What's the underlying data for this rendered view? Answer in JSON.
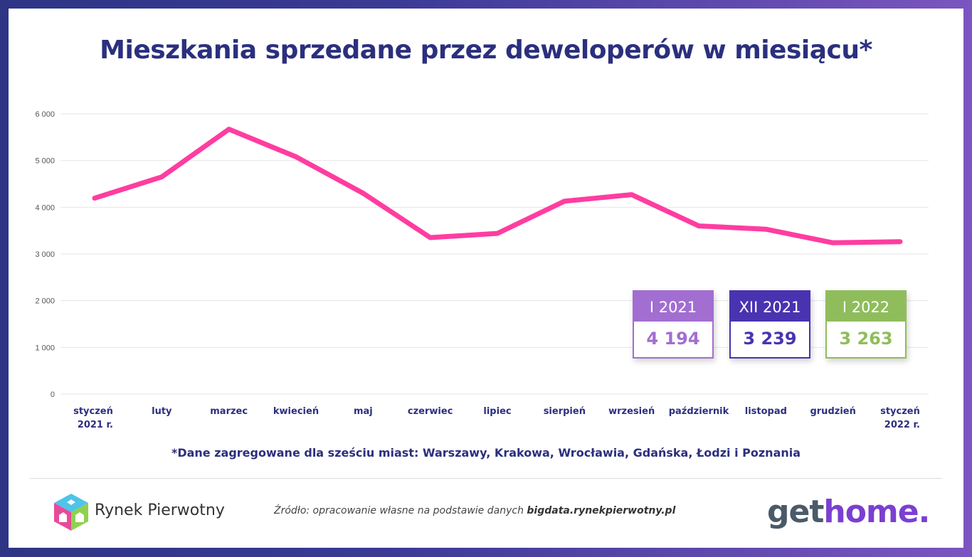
{
  "title": "Mieszkania sprzedane przez deweloperów w miesiącu*",
  "chart_data": {
    "type": "line",
    "title": "Mieszkania sprzedane przez deweloperów w miesiącu*",
    "categories": [
      [
        "styczeń",
        "2021 r."
      ],
      [
        "luty"
      ],
      [
        "marzec"
      ],
      [
        "kwiecień"
      ],
      [
        "maj"
      ],
      [
        "czerwiec"
      ],
      [
        "lipiec"
      ],
      [
        "sierpień"
      ],
      [
        "wrzesień"
      ],
      [
        "październik"
      ],
      [
        "listopad"
      ],
      [
        "grudzień"
      ],
      [
        "styczeń",
        "2022 r."
      ]
    ],
    "series": [
      {
        "values": [
          4194,
          4650,
          5670,
          5080,
          4300,
          3350,
          3440,
          4130,
          4270,
          3600,
          3530,
          3239,
          3263
        ],
        "color": "#ff3da0"
      }
    ],
    "ylim": [
      0,
      6000
    ],
    "yticks": [
      0,
      1000,
      2000,
      3000,
      4000,
      5000,
      6000
    ],
    "ytick_labels": [
      "0",
      "1 000",
      "2 000",
      "3 000",
      "4 000",
      "5 000",
      "6 000"
    ],
    "grid": true,
    "legend": "none"
  },
  "highlights": [
    {
      "label": "I 2021",
      "value": "4 194",
      "color": "#a26ed1"
    },
    {
      "label": "XII 2021",
      "value": "3 239",
      "color": "#4a33b0"
    },
    {
      "label": "I 2022",
      "value": "3 263",
      "color": "#8fbd5c"
    }
  ],
  "footnote": "*Dane zagregowane dla sześciu miast: Warszawy, Krakowa, Wrocławia, Gdańska, Łodzi i Poznania",
  "footer": {
    "brand_left": "Rynek Pierwotny",
    "source_prefix": "Źródło: opracowanie własne na podstawie danych",
    "source_link": "bigdata.rynekpierwotny.pl",
    "brand_right_part1": "get",
    "brand_right_part2": "home."
  }
}
